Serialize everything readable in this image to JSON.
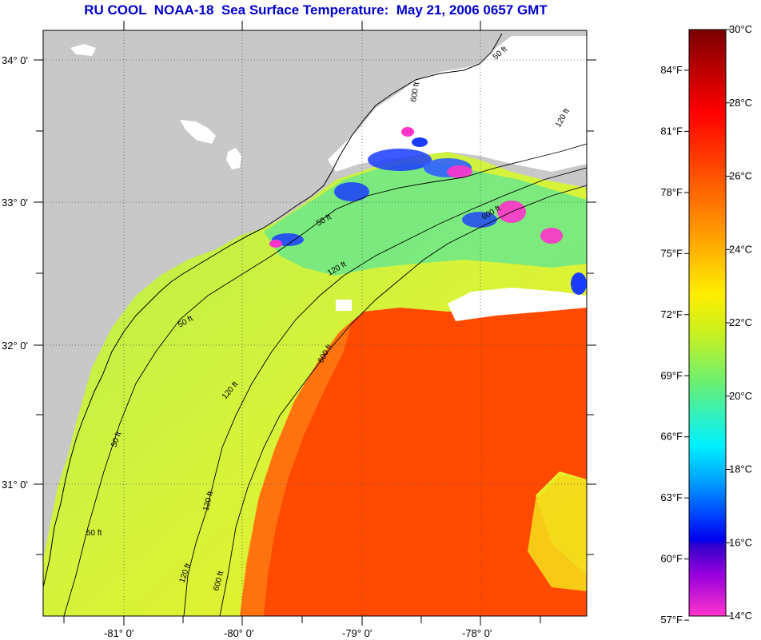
{
  "title": "RU COOL  NOAA-18  Sea Surface Temperature:  May 21, 2006 0657 GMT",
  "map": {
    "lat_labels": [
      "34° 0'",
      "33° 0'",
      "32° 0'",
      "31° 0'"
    ],
    "lon_labels": [
      "-81° 0'",
      "-80° 0'",
      "-79° 0'",
      "-78° 0'"
    ],
    "isobath_labels": [
      "50 ft",
      "120 ft",
      "600 ft",
      "50 ft",
      "120 ft",
      "600 ft",
      "50 ft",
      "120 ft",
      "600 ft",
      "50 ft",
      "120 ft",
      "50 ft",
      "120 ft",
      "600 ft"
    ],
    "colors": {
      "land": "#c8c8c8",
      "cloud": "#ffffff",
      "ocean_warm": "#ff4a00",
      "ocean_shelf": "#d9f03a"
    }
  },
  "colorbar": {
    "celsius_labels": [
      "30°C",
      "28°C",
      "26°C",
      "24°C",
      "22°C",
      "20°C",
      "18°C",
      "16°C",
      "14°C"
    ],
    "fahrenheit_labels": [
      "84°F",
      "81°F",
      "78°F",
      "75°F",
      "72°F",
      "69°F",
      "66°F",
      "63°F",
      "60°F",
      "57°F"
    ],
    "celsius_range": [
      14,
      30
    ],
    "fahrenheit_range": [
      57,
      86
    ]
  }
}
